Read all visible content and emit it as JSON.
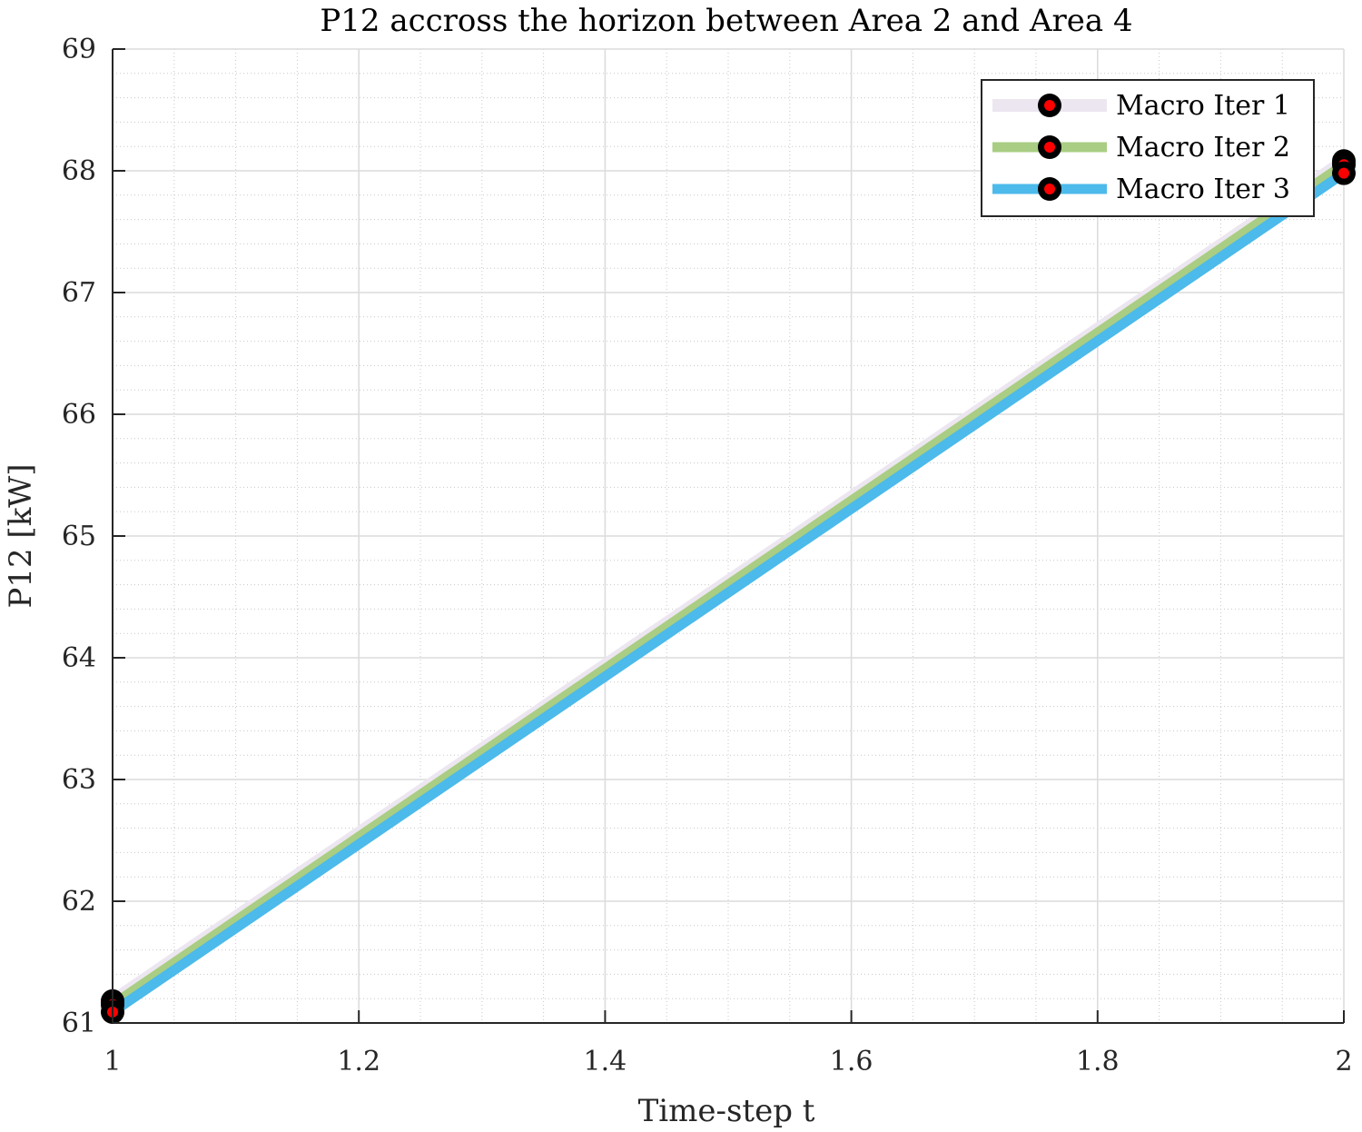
{
  "chart_data": {
    "type": "line",
    "title": "P12 accross the horizon between Area 2 and Area 4",
    "xlabel": "Time-step t",
    "ylabel": "P12 [kW]",
    "xlim": [
      1,
      2
    ],
    "ylim": [
      61,
      69
    ],
    "xticks": [
      1,
      1.2,
      1.4,
      1.6,
      1.8,
      2
    ],
    "xtick_labels": [
      "1",
      "1.2",
      "1.4",
      "1.6",
      "1.8",
      "2"
    ],
    "yticks": [
      61,
      62,
      63,
      64,
      65,
      66,
      67,
      68,
      69
    ],
    "ytick_labels": [
      "61",
      "62",
      "63",
      "64",
      "65",
      "66",
      "67",
      "68",
      "69"
    ],
    "grid": true,
    "minor_grid": true,
    "legend_position": "top-right",
    "x": [
      1,
      2
    ],
    "series": [
      {
        "name": "Macro Iter 1",
        "values": [
          61.18,
          68.08
        ],
        "color": "#ece6f0"
      },
      {
        "name": "Macro Iter 2",
        "values": [
          61.15,
          68.05
        ],
        "color": "#a9cd83"
      },
      {
        "name": "Macro Iter 3",
        "values": [
          61.09,
          67.98
        ],
        "color": "#4cbaea"
      }
    ],
    "marker": {
      "fill": "#ff0000",
      "edge": "#000000"
    }
  }
}
